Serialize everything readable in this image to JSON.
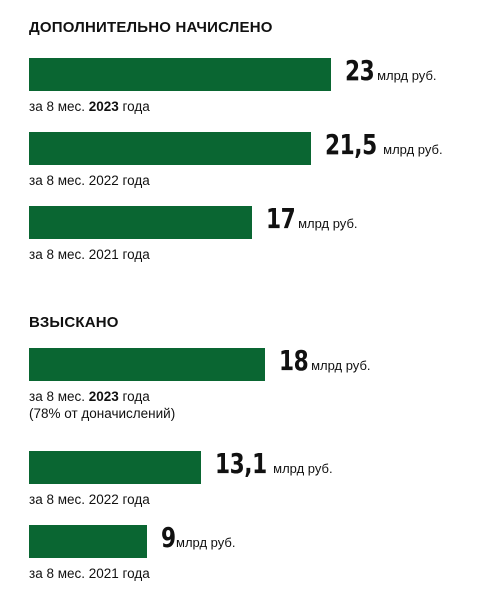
{
  "chart_data": [
    {
      "type": "bar",
      "title": "ДОПОЛНИТЕЛЬНО НАЧИСЛЕНО",
      "unit": "млрд руб.",
      "xlim": [
        0,
        23
      ],
      "bars": [
        {
          "value": 23,
          "value_label": "23",
          "caption_before": "за 8 мес. ",
          "caption_bold": "2023",
          "caption_after": " года",
          "caption_line2": ""
        },
        {
          "value": 21.5,
          "value_label": "21,5",
          "caption_before": "за 8 мес. 2022 года",
          "caption_bold": "",
          "caption_after": "",
          "caption_line2": ""
        },
        {
          "value": 17,
          "value_label": "17",
          "caption_before": "за 8 мес. 2021 года",
          "caption_bold": "",
          "caption_after": "",
          "caption_line2": ""
        }
      ]
    },
    {
      "type": "bar",
      "title": "ВЗЫСКАНО",
      "unit": "млрд руб.",
      "xlim": [
        0,
        23
      ],
      "bars": [
        {
          "value": 18,
          "value_label": "18",
          "caption_before": "за 8 мес. ",
          "caption_bold": "2023",
          "caption_after": " года",
          "caption_line2": "(78% от доначислений)"
        },
        {
          "value": 13.1,
          "value_label": "13,1",
          "caption_before": "за 8 мес. 2022 года",
          "caption_bold": "",
          "caption_after": "",
          "caption_line2": ""
        },
        {
          "value": 9,
          "value_label": "9",
          "caption_before": "за 8 мес. 2021 года",
          "caption_bold": "",
          "caption_after": "",
          "caption_line2": ""
        }
      ]
    }
  ],
  "colors": {
    "bar": "#0a6632",
    "text": "#111111",
    "background": "#ffffff"
  }
}
